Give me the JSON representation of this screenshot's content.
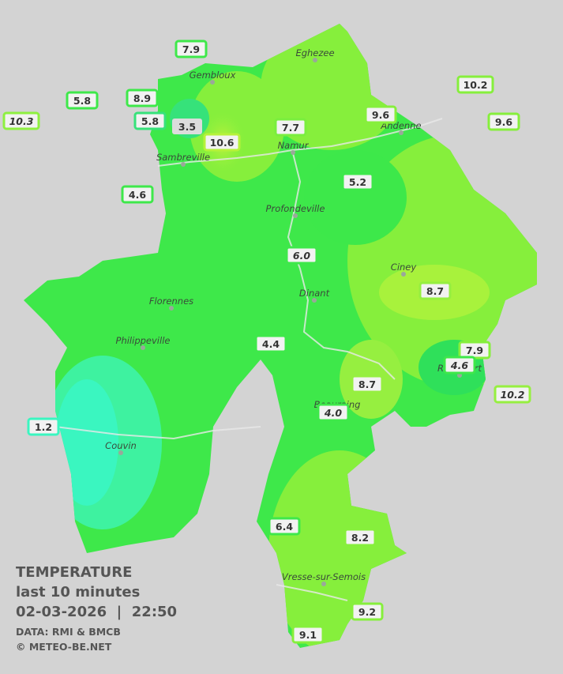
{
  "map": {
    "cities": [
      "Eghezee",
      "Gembloux",
      "Andenne",
      "Namur",
      "Sambreville",
      "Profondeville",
      "Ciney",
      "Dinant",
      "Florennes",
      "Philippeville",
      "Rochefort",
      "Beauraing",
      "Couvin",
      "Vresse-sur-Semois"
    ],
    "stations": [
      "7.9",
      "5.8",
      "8.9",
      "10.3",
      "5.8",
      "3.5",
      "10.6",
      "7.7",
      "9.6",
      "10.2",
      "9.6",
      "4.6",
      "5.2",
      "6.0",
      "8.7",
      "4.4",
      "7.9",
      "4.6",
      "10.2",
      "8.7",
      "4.0",
      "1.2",
      "6.4",
      "8.2",
      "9.2",
      "9.1"
    ]
  },
  "legend": {
    "title": "TEMPERATURE",
    "period": "last 10 minutes",
    "datetime": "02-03-2026  |  22:50",
    "source": "DATA: RMI & BMCB",
    "copyright": "© METEO-BE.NET"
  }
}
